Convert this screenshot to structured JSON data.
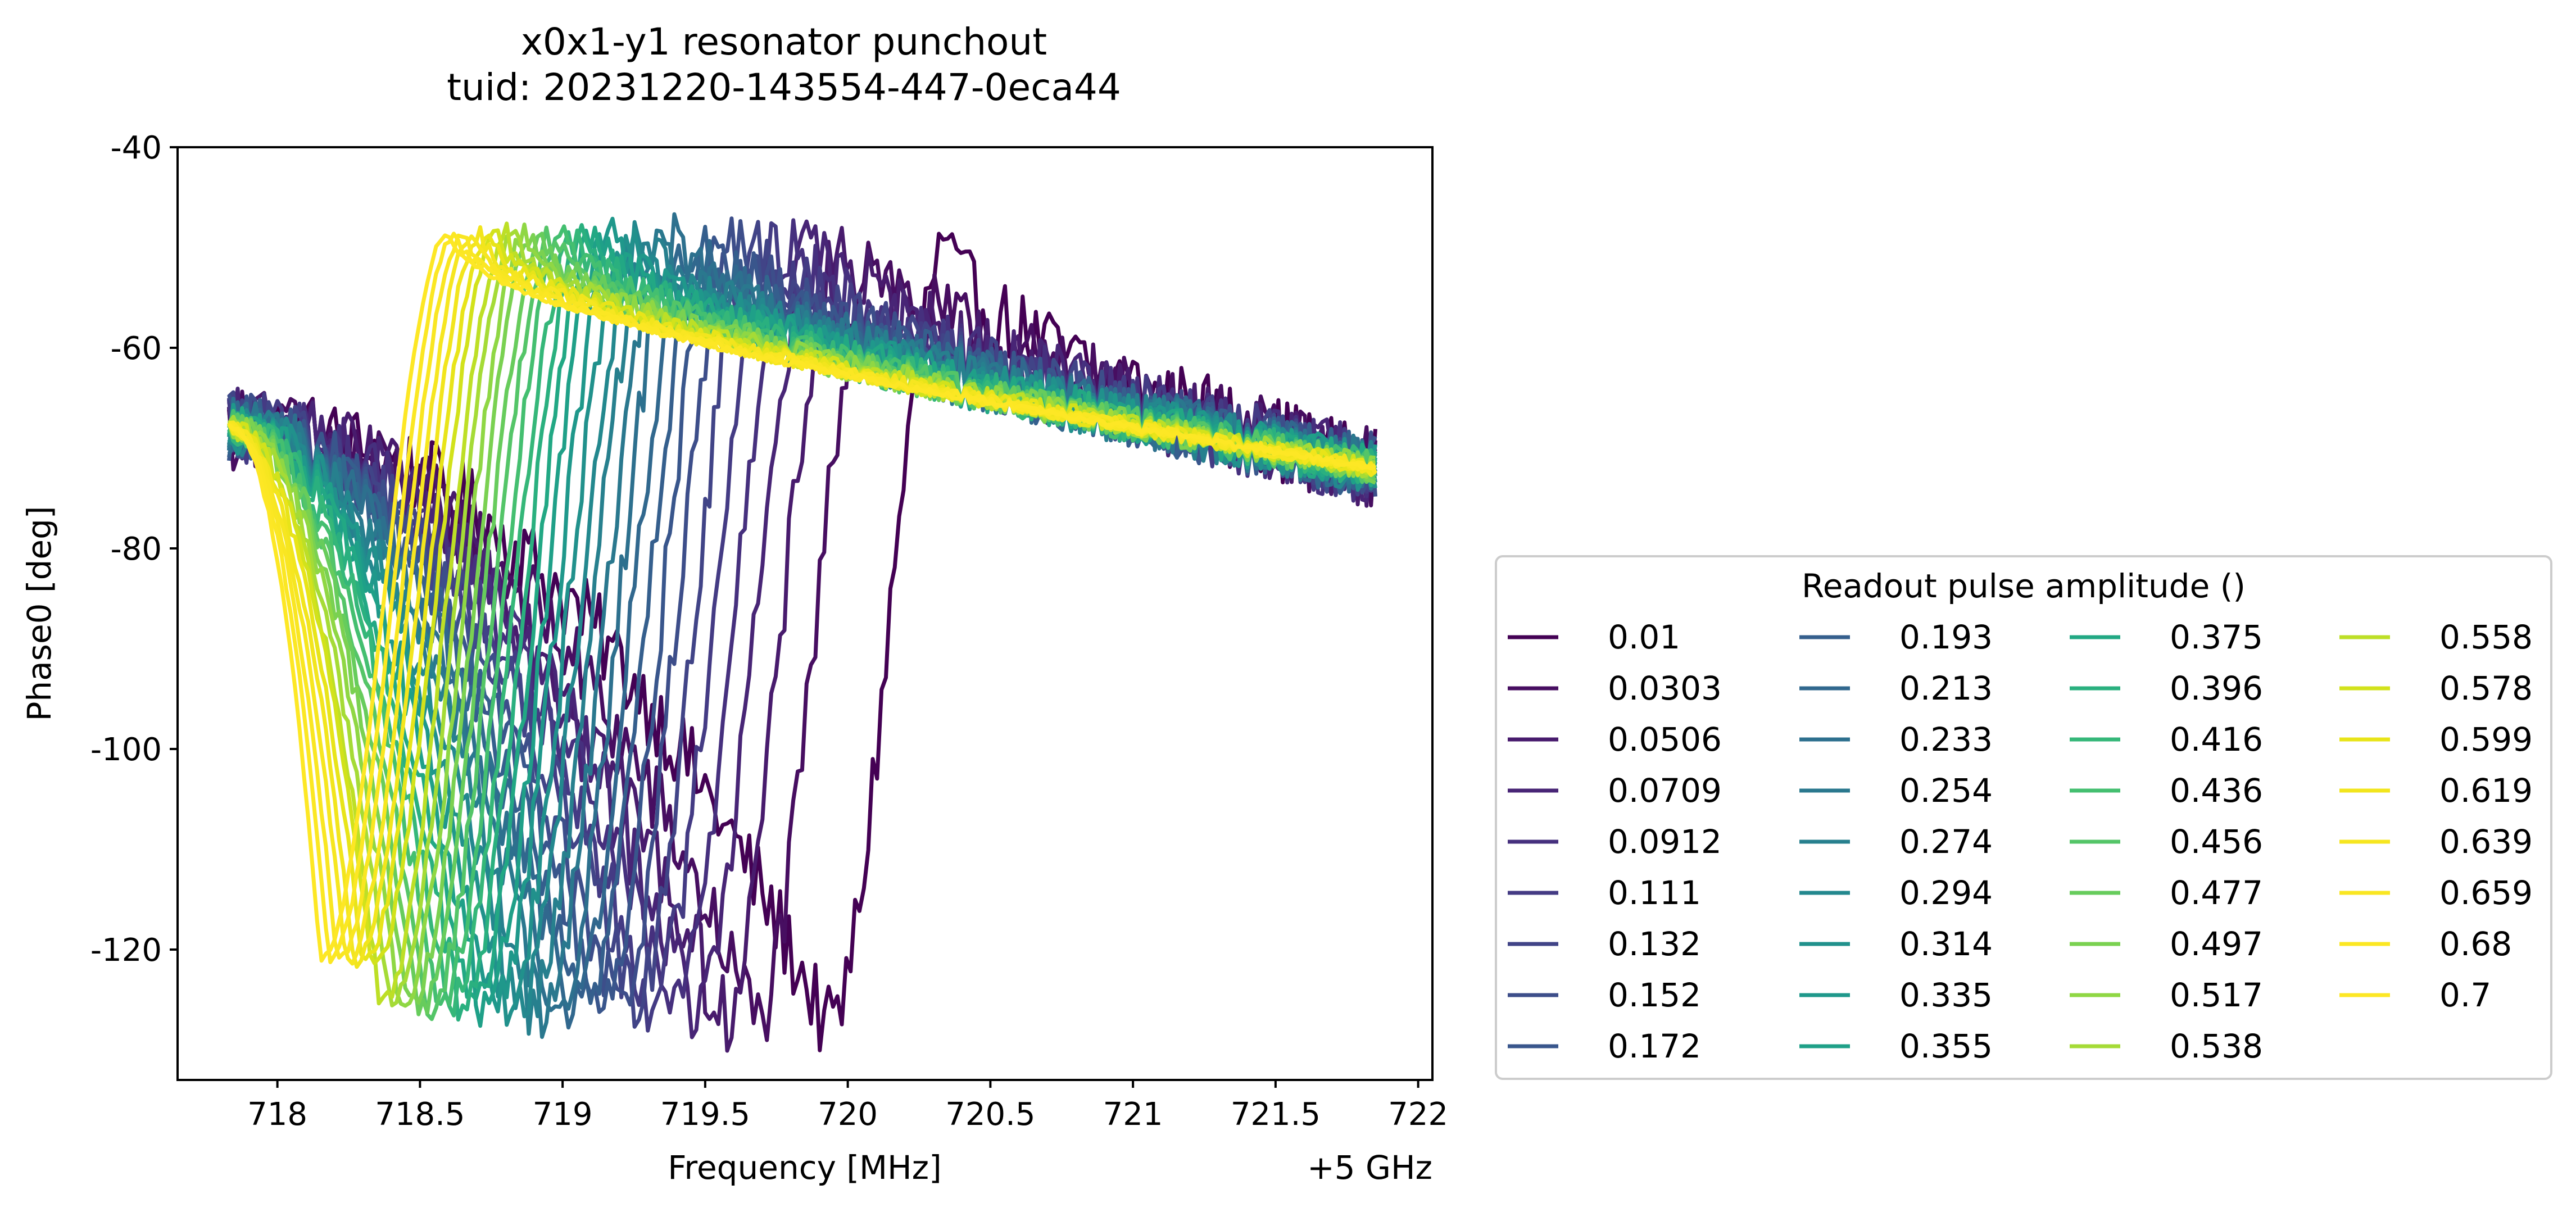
{
  "chart_data": {
    "type": "line",
    "title": [
      "x0x1-y1 resonator punchout",
      "tuid: 20231220-143554-447-0eca44"
    ],
    "xlabel": "Frequency [MHz]",
    "x_offset_label": "+5 GHz",
    "ylabel": "Phase0 [deg]",
    "xlim": [
      717.65,
      722.05
    ],
    "ylim": [
      -133,
      -40
    ],
    "x_ticks": [
      718,
      718.5,
      719,
      719.5,
      720,
      720.5,
      721,
      721.5,
      722
    ],
    "x_tick_labels": [
      "718",
      "718.5",
      "719",
      "719.5",
      "720",
      "720.5",
      "721",
      "721.5",
      "722"
    ],
    "y_ticks": [
      -40,
      -60,
      -80,
      -100,
      -120
    ],
    "y_tick_labels": [
      "-40",
      "-60",
      "-80",
      "-100",
      "-120"
    ],
    "x_range_data": [
      717.83,
      721.85
    ],
    "grid": false,
    "legend": {
      "title": "Readout pulse amplitude ()",
      "placement": "lower-right-outside",
      "columns": 4,
      "labels": [
        "0.01",
        "0.0303",
        "0.0506",
        "0.0709",
        "0.0912",
        "0.111",
        "0.132",
        "0.152",
        "0.172",
        "0.193",
        "0.213",
        "0.233",
        "0.254",
        "0.274",
        "0.294",
        "0.314",
        "0.335",
        "0.355",
        "0.375",
        "0.396",
        "0.416",
        "0.436",
        "0.456",
        "0.477",
        "0.497",
        "0.517",
        "0.538",
        "0.558",
        "0.578",
        "0.599",
        "0.619",
        "0.639",
        "0.659",
        "0.68",
        "0.7"
      ],
      "colors": [
        "#440154",
        "#470e61",
        "#481b6d",
        "#482576",
        "#46307e",
        "#443b84",
        "#414487",
        "#3d4e8a",
        "#39568c",
        "#355f8d",
        "#31688e",
        "#2d708e",
        "#2a788e",
        "#27808e",
        "#23888e",
        "#21918c",
        "#1f988b",
        "#1fa088",
        "#22a884",
        "#2ab07f",
        "#35b779",
        "#44bf70",
        "#54c568",
        "#67cc5c",
        "#7ad151",
        "#8fd744",
        "#a5db36",
        "#bddf26",
        "#d2e21b",
        "#e8e419",
        "#f2e51d",
        "#f6e620",
        "#f9e622",
        "#fbe723",
        "#fde725"
      ]
    },
    "series_shape_summary": {
      "low_amplitude_dip_frequency": 719.93,
      "low_amplitude_dip_phase": -128,
      "high_amplitude_dip_frequency": 718.15,
      "high_amplitude_dip_phase": -121,
      "high_amplitude_peak_frequency": 718.6,
      "high_amplitude_peak_phase": -48.5,
      "start_phase": -68,
      "end_phase": -72
    }
  }
}
